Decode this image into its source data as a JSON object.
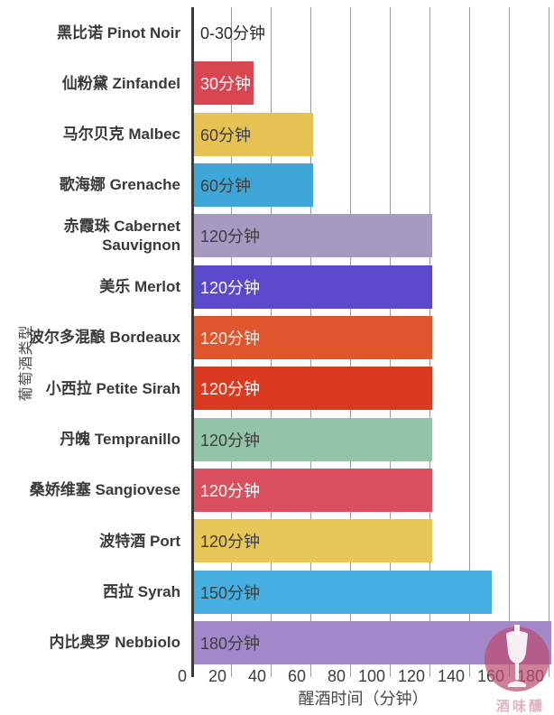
{
  "chart_data": {
    "type": "bar",
    "orientation": "horizontal",
    "title": "",
    "xlabel": "醒酒时间（分钟）",
    "ylabel": "葡萄酒类型",
    "xlim": [
      0,
      183
    ],
    "xticks": [
      0,
      20,
      40,
      60,
      80,
      100,
      120,
      140,
      160,
      180
    ],
    "grid": true,
    "legend": false,
    "bars": [
      {
        "category": "黑比诺 Pinot Noir",
        "value": 0,
        "label": "0-30分钟",
        "color": null,
        "label_color": "#2b2b2b"
      },
      {
        "category": "仙粉黛 Zinfandel",
        "value": 30,
        "label": "30分钟",
        "color": "#d84652",
        "label_color": "#ffffff"
      },
      {
        "category": "马尔贝克 Malbec",
        "value": 60,
        "label": "60分钟",
        "color": "#e6c253",
        "label_color": "#3d3d3d"
      },
      {
        "category": "歌海娜 Grenache",
        "value": 60,
        "label": "60分钟",
        "color": "#3fa6d8",
        "label_color": "#3d3d3d"
      },
      {
        "category": "赤霞珠 Cabernet Sauvignon",
        "value": 120,
        "label": "120分钟",
        "color": "#a79ac2",
        "label_color": "#3d3d3d"
      },
      {
        "category": "美乐 Merlot",
        "value": 120,
        "label": "120分钟",
        "color": "#5a49cb",
        "label_color": "#ffffff"
      },
      {
        "category": "波尔多混酿 Bordeaux",
        "value": 120,
        "label": "120分钟",
        "color": "#e0562c",
        "label_color": "#eeeeee"
      },
      {
        "category": "小西拉 Petite Sirah",
        "value": 120,
        "label": "120分钟",
        "color": "#d93a20",
        "label_color": "#ffffff"
      },
      {
        "category": "丹魄 Tempranillo",
        "value": 120,
        "label": "120分钟",
        "color": "#92c4a7",
        "label_color": "#3d3d3d"
      },
      {
        "category": "桑娇维塞 Sangiovese",
        "value": 120,
        "label": "120分钟",
        "color": "#d94f5e",
        "label_color": "#ffffff"
      },
      {
        "category": "波特酒 Port",
        "value": 120,
        "label": "120分钟",
        "color": "#e8c658",
        "label_color": "#3d3d3d"
      },
      {
        "category": "西拉 Syrah",
        "value": 150,
        "label": "150分钟",
        "color": "#45afe2",
        "label_color": "#3d3d3d"
      },
      {
        "category": "内比奥罗 Nebbiolo",
        "value": 180,
        "label": "180分钟",
        "color": "#a287c9",
        "label_color": "#3d3d3d"
      }
    ]
  },
  "watermark": {
    "logo": "wine-glass-circle-logo",
    "text": "酒味醺",
    "color": "#bd4d72"
  }
}
